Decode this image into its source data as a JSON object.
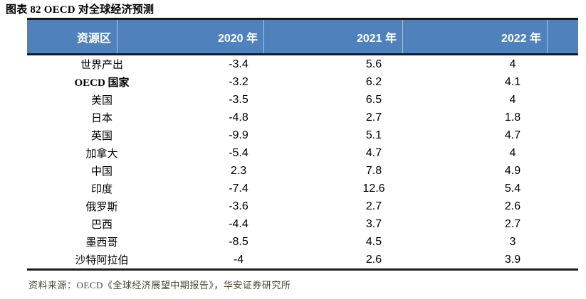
{
  "title": "图表 82 OECD 对全球经济预测",
  "table": {
    "headers": [
      "资源区",
      "2020 年",
      "2021 年",
      "2022 年"
    ],
    "rows": [
      {
        "label": "世界产出",
        "bold": false,
        "values": [
          "-3.4",
          "5.6",
          "4"
        ]
      },
      {
        "label": "OECD 国家",
        "bold": true,
        "values": [
          "-3.2",
          "6.2",
          "4.1"
        ]
      },
      {
        "label": "美国",
        "bold": false,
        "values": [
          "-3.5",
          "6.5",
          "4"
        ]
      },
      {
        "label": "日本",
        "bold": false,
        "values": [
          "-4.8",
          "2.7",
          "1.8"
        ]
      },
      {
        "label": "英国",
        "bold": false,
        "values": [
          "-9.9",
          "5.1",
          "4.7"
        ]
      },
      {
        "label": "加拿大",
        "bold": false,
        "values": [
          "-5.4",
          "4.7",
          "4"
        ]
      },
      {
        "label": "中国",
        "bold": false,
        "values": [
          "2.3",
          "7.8",
          "4.9"
        ]
      },
      {
        "label": "印度",
        "bold": false,
        "values": [
          "-7.4",
          "12.6",
          "5.4"
        ]
      },
      {
        "label": "俄罗斯",
        "bold": false,
        "values": [
          "-3.6",
          "2.7",
          "2.6"
        ]
      },
      {
        "label": "巴西",
        "bold": false,
        "values": [
          "-4.4",
          "3.7",
          "2.7"
        ]
      },
      {
        "label": "墨西哥",
        "bold": false,
        "values": [
          "-8.5",
          "4.5",
          "3"
        ]
      },
      {
        "label": "沙特阿拉伯",
        "bold": false,
        "values": [
          "-4",
          "2.6",
          "3.9"
        ]
      }
    ]
  },
  "source": "资料来源：OECD《全球经济展望中期报告》，华安证券研究所",
  "colors": {
    "header_bg": "#4F81BD",
    "header_text": "#FFFFFF",
    "border_dark": "#1A1A1A",
    "source_text": "#4C4536"
  },
  "chart_data": {
    "type": "table",
    "title": "图表 82 OECD 对全球经济预测",
    "categories": [
      "世界产出",
      "OECD 国家",
      "美国",
      "日本",
      "英国",
      "加拿大",
      "中国",
      "印度",
      "俄罗斯",
      "巴西",
      "墨西哥",
      "沙特阿拉伯"
    ],
    "series": [
      {
        "name": "2020 年",
        "values": [
          -3.4,
          -3.2,
          -3.5,
          -4.8,
          -9.9,
          -5.4,
          2.3,
          -7.4,
          -3.6,
          -4.4,
          -8.5,
          -4
        ]
      },
      {
        "name": "2021 年",
        "values": [
          5.6,
          6.2,
          6.5,
          2.7,
          5.1,
          4.7,
          7.8,
          12.6,
          2.7,
          3.7,
          4.5,
          2.6
        ]
      },
      {
        "name": "2022 年",
        "values": [
          4,
          4.1,
          4,
          1.8,
          4.7,
          4,
          4.9,
          5.4,
          2.6,
          2.7,
          3,
          3.9
        ]
      }
    ],
    "legend_position": "header-row",
    "grid": false
  }
}
